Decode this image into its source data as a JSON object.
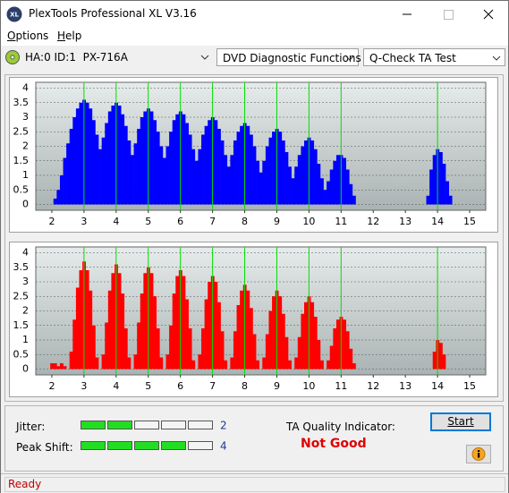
{
  "window": {
    "icon": "XL",
    "title": "PlexTools Professional XL V3.16"
  },
  "menu": [
    "Options",
    "Help"
  ],
  "toolbar": {
    "drive": "HA:0 ID:1  PX-716A",
    "function": "DVD Diagnostic Functions",
    "test": "Q-Check TA Test"
  },
  "chart_data": [
    {
      "type": "bar",
      "color": "#0000ff",
      "marker_color": "#00e000",
      "grid": true,
      "xlim": [
        1.5,
        15.5
      ],
      "ylim": [
        -0.2,
        4.2
      ],
      "xticks": [
        2,
        3,
        4,
        5,
        6,
        7,
        8,
        9,
        10,
        11,
        12,
        13,
        14,
        15
      ],
      "yticks": [
        0,
        0.5,
        1,
        1.5,
        2,
        2.5,
        3,
        3.5,
        4
      ],
      "markers": [
        3,
        4,
        5,
        6,
        7,
        8,
        9,
        10,
        11,
        14
      ],
      "x": [
        2,
        2.1,
        2.2,
        2.3,
        2.4,
        2.5,
        2.6,
        2.7,
        2.8,
        2.9,
        3,
        3.1,
        3.2,
        3.3,
        3.4,
        3.5,
        3.6,
        3.7,
        3.8,
        3.9,
        4,
        4.1,
        4.2,
        4.3,
        4.4,
        4.5,
        4.6,
        4.7,
        4.8,
        4.9,
        5,
        5.1,
        5.2,
        5.3,
        5.4,
        5.5,
        5.6,
        5.7,
        5.8,
        5.9,
        6,
        6.1,
        6.2,
        6.3,
        6.4,
        6.5,
        6.6,
        6.7,
        6.8,
        6.9,
        7,
        7.1,
        7.2,
        7.3,
        7.4,
        7.5,
        7.6,
        7.7,
        7.8,
        7.9,
        8,
        8.1,
        8.2,
        8.3,
        8.4,
        8.5,
        8.6,
        8.7,
        8.8,
        8.9,
        9,
        9.1,
        9.2,
        9.3,
        9.4,
        9.5,
        9.6,
        9.7,
        9.8,
        9.9,
        10,
        10.1,
        10.2,
        10.3,
        10.4,
        10.5,
        10.6,
        10.7,
        10.8,
        10.9,
        11,
        11.1,
        11.2,
        11.3,
        11.4,
        11.5,
        13.6,
        13.7,
        13.8,
        13.9,
        14,
        14.1,
        14.2,
        14.3,
        14.4,
        14.5
      ],
      "values": [
        0,
        0.2,
        0.5,
        1.0,
        1.6,
        2.1,
        2.6,
        3.0,
        3.3,
        3.5,
        3.6,
        3.5,
        3.3,
        2.9,
        2.4,
        1.9,
        2.3,
        2.8,
        3.2,
        3.4,
        3.5,
        3.4,
        3.1,
        2.7,
        2.2,
        1.7,
        2.1,
        2.6,
        3.0,
        3.2,
        3.3,
        3.2,
        2.9,
        2.5,
        2.0,
        1.6,
        2.0,
        2.5,
        2.9,
        3.1,
        3.2,
        3.1,
        2.8,
        2.4,
        1.9,
        1.5,
        1.9,
        2.4,
        2.7,
        2.9,
        3.0,
        2.9,
        2.6,
        2.2,
        1.7,
        1.3,
        1.7,
        2.2,
        2.5,
        2.7,
        2.8,
        2.7,
        2.4,
        2.0,
        1.5,
        1.1,
        1.5,
        2.0,
        2.3,
        2.5,
        2.6,
        2.5,
        2.2,
        1.8,
        1.3,
        0.9,
        1.3,
        1.7,
        2.0,
        2.2,
        2.3,
        2.2,
        1.9,
        1.4,
        0.9,
        0.5,
        0.8,
        1.2,
        1.5,
        1.7,
        1.7,
        1.6,
        1.2,
        0.7,
        0.3,
        0,
        0,
        0.3,
        1.2,
        1.7,
        1.9,
        1.8,
        1.4,
        0.8,
        0.3,
        0
      ]
    },
    {
      "type": "bar",
      "color": "#ff0000",
      "marker_color": "#00e000",
      "grid": true,
      "xlim": [
        1.5,
        15.5
      ],
      "ylim": [
        -0.2,
        4.2
      ],
      "xticks": [
        2,
        3,
        4,
        5,
        6,
        7,
        8,
        9,
        10,
        11,
        12,
        13,
        14,
        15
      ],
      "yticks": [
        0,
        0.5,
        1,
        1.5,
        2,
        2.5,
        3,
        3.5,
        4
      ],
      "markers": [
        3,
        4,
        5,
        6,
        7,
        8,
        9,
        10,
        11,
        14
      ],
      "x": [
        2,
        2.1,
        2.2,
        2.3,
        2.4,
        2.5,
        2.6,
        2.7,
        2.8,
        2.9,
        3,
        3.1,
        3.2,
        3.3,
        3.4,
        3.5,
        3.6,
        3.7,
        3.8,
        3.9,
        4,
        4.1,
        4.2,
        4.3,
        4.4,
        4.5,
        4.6,
        4.7,
        4.8,
        4.9,
        5,
        5.1,
        5.2,
        5.3,
        5.4,
        5.5,
        5.6,
        5.7,
        5.8,
        5.9,
        6,
        6.1,
        6.2,
        6.3,
        6.4,
        6.5,
        6.6,
        6.7,
        6.8,
        6.9,
        7,
        7.1,
        7.2,
        7.3,
        7.4,
        7.5,
        7.6,
        7.7,
        7.8,
        7.9,
        8,
        8.1,
        8.2,
        8.3,
        8.4,
        8.5,
        8.6,
        8.7,
        8.8,
        8.9,
        9,
        9.1,
        9.2,
        9.3,
        9.4,
        9.5,
        9.6,
        9.7,
        9.8,
        9.9,
        10,
        10.1,
        10.2,
        10.3,
        10.4,
        10.5,
        10.6,
        10.7,
        10.8,
        10.9,
        11,
        11.1,
        11.2,
        11.3,
        11.4,
        11.5,
        13.8,
        13.9,
        14,
        14.1,
        14.2,
        14.3
      ],
      "values": [
        0.2,
        0.2,
        0.1,
        0.2,
        0.1,
        0,
        0.6,
        1.7,
        2.8,
        3.4,
        3.7,
        3.4,
        2.7,
        1.5,
        0.4,
        0,
        0.5,
        1.6,
        2.7,
        3.3,
        3.6,
        3.3,
        2.6,
        1.4,
        0.4,
        0,
        0.5,
        1.6,
        2.6,
        3.3,
        3.5,
        3.3,
        2.5,
        1.4,
        0.4,
        0,
        0.5,
        1.5,
        2.6,
        3.2,
        3.4,
        3.2,
        2.4,
        1.4,
        0.3,
        0,
        0.5,
        1.4,
        2.4,
        3.0,
        3.2,
        3.0,
        2.3,
        1.3,
        0.3,
        0,
        0.4,
        1.3,
        2.2,
        2.7,
        2.9,
        2.7,
        2.1,
        1.2,
        0.3,
        0,
        0.4,
        1.2,
        2.0,
        2.5,
        2.7,
        2.5,
        1.9,
        1.1,
        0.3,
        0,
        0.4,
        1.1,
        1.9,
        2.3,
        2.5,
        2.3,
        1.8,
        1.0,
        0.3,
        0,
        0.3,
        0.8,
        1.4,
        1.7,
        1.8,
        1.7,
        1.3,
        0.7,
        0.2,
        0,
        0,
        0.6,
        1.0,
        0.9,
        0.5,
        0
      ]
    }
  ],
  "results": {
    "jitter_label": "Jitter:",
    "jitter": 2,
    "peak_shift_label": "Peak Shift:",
    "peak_shift": 4,
    "ta_label": "TA Quality Indicator:",
    "ta_result": "Not Good",
    "start": "Start"
  },
  "status": "Ready"
}
